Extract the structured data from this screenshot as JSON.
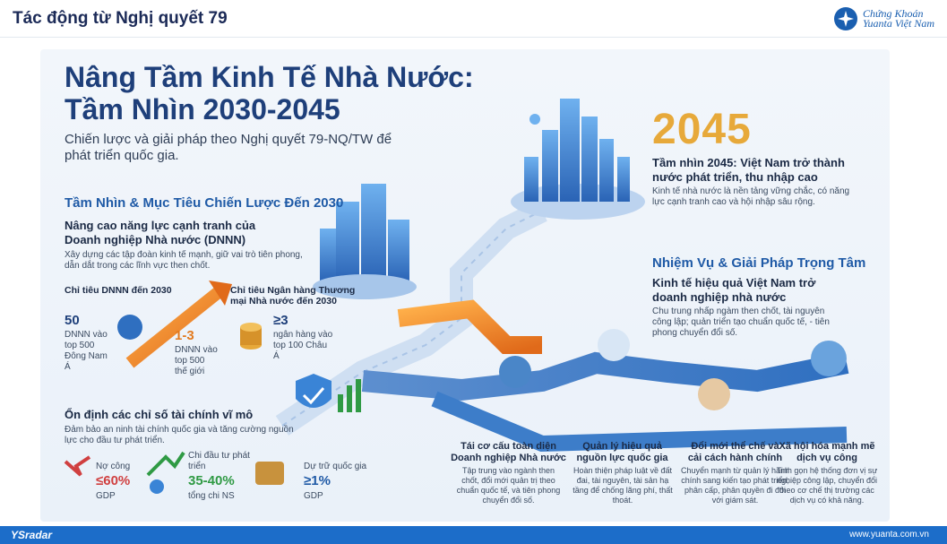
{
  "header": {
    "title": "Tác động từ Nghị quyết 79",
    "logo_line1": "Chứng Khoán",
    "logo_line2": "Yuanta Việt Nam"
  },
  "infographic": {
    "title_line1": "Nâng Tầm Kinh Tế Nhà Nước:",
    "title_line2": "Tầm Nhìn 2030-2045",
    "subtitle": "Chiến lược và giải pháp theo Nghị quyết 79-NQ/TW để phát triển quốc gia.",
    "vision_2030": {
      "heading": "Tầm Nhìn & Mục Tiêu Chiến Lược Đến 2030",
      "block_title": "Nâng cao năng lực cạnh tranh của Doanh nghiệp Nhà nước (DNNN)",
      "block_text": "Xây dựng các tập đoàn kinh tế mạnh, giữ vai trò tiên phong, dẫn dắt trong các lĩnh vực then chốt.",
      "dnnn_target_label": "Chỉ tiêu DNNN đến 2030",
      "dnnn_value": "50",
      "dnnn_desc": "DNNN vào top 500 Đông Nam Á",
      "dnnn_world_value": "1-3",
      "dnnn_world_desc": "DNNN vào top 500 thế giới",
      "bank_target_label": "Chỉ tiêu Ngân hàng Thương mại Nhà nước đến 2030",
      "bank_value": "≥3",
      "bank_desc": "ngân hàng vào top 100 Châu Á"
    },
    "macro": {
      "heading": "Ổn định các chỉ số tài chính vĩ mô",
      "text": "Đảm bảo an ninh tài chính quốc gia và tăng cường nguồn lực cho đầu tư phát triển.",
      "debt_label": "Nợ công",
      "debt_value": "≤60%",
      "debt_unit": "GDP",
      "invest_label": "Chi đầu tư phát triển",
      "invest_value": "35-40%",
      "invest_unit": "tổng chi NS",
      "reserve_label": "Dự trữ quốc gia",
      "reserve_value": "≥1%",
      "reserve_unit": "GDP"
    },
    "vision_2045": {
      "year": "2045",
      "title": "Tầm nhìn 2045: Việt Nam trở thành nước phát triển, thu nhập cao",
      "text": "Kinh tế nhà nước là nền tảng vững chắc, có năng lực cạnh tranh cao và hội nhập sâu rộng."
    },
    "tasks": {
      "heading": "Nhiệm Vụ & Giải Pháp Trọng Tâm",
      "title": "Kinh tế hiệu quả Việt Nam trở doanh nghiệp nhà nước",
      "text": "Chu trung nhấp ngàm then chốt, tài nguyên công lập; quản triển tạo chuẩn quốc tế, - tiên phong chuyển đổi số."
    },
    "solutions": [
      {
        "title": "Tái cơ cấu toàn diện Doanh nghiệp Nhà nước",
        "text": "Tập trung vào ngành then chốt, đổi mới quản trị theo chuẩn quốc tế, và tiên phong chuyển đổi số."
      },
      {
        "title": "Quản lý hiệu quả nguồn lực quốc gia",
        "text": "Hoàn thiện pháp luật về đất đai, tài nguyên, tài sản hạ tầng để chống lãng phí, thất thoát."
      },
      {
        "title": "Đổi mới thể chế và cải cách hành chính",
        "text": "Chuyển mạnh từ quản lý hành chính sang kiến tạo phát triển, phân cấp, phân quyền đi đôi với giám sát."
      },
      {
        "title": "Xã hội hóa mạnh mẽ dịch vụ công",
        "text": "Tinh gọn hệ thống đơn vị sự nghiệp công lập, chuyển đổi theo cơ chế thị trường các dịch vụ có khả năng."
      }
    ]
  },
  "footer": {
    "left": "YSradar",
    "right": "www.yuanta.com.vn"
  },
  "colors": {
    "header_title": "#1b2a57",
    "accent_blue": "#1f5aa6",
    "accent_orange": "#e27a1f",
    "gold": "#e7a93a",
    "footer": "#1c6dc9"
  }
}
